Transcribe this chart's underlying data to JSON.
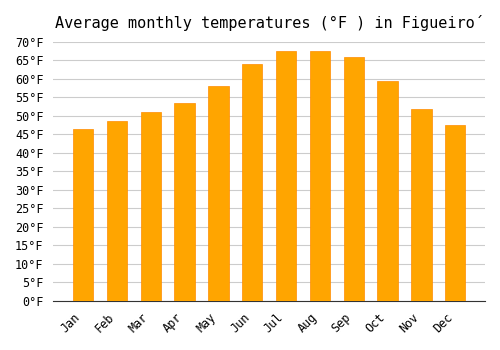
{
  "title": "Average monthly temperatures (°F ) in Figueiró",
  "months": [
    "Jan",
    "Feb",
    "Mar",
    "Apr",
    "May",
    "Jun",
    "Jul",
    "Aug",
    "Sep",
    "Oct",
    "Nov",
    "Dec"
  ],
  "values": [
    46.5,
    48.5,
    51.0,
    53.5,
    58.0,
    64.0,
    67.5,
    67.5,
    66.0,
    59.5,
    52.0,
    47.5
  ],
  "bar_color": "#FFA500",
  "bar_edge_color": "#FF8C00",
  "background_color": "#ffffff",
  "grid_color": "#cccccc",
  "ylim": [
    0,
    70
  ],
  "yticks": [
    0,
    5,
    10,
    15,
    20,
    25,
    30,
    35,
    40,
    45,
    50,
    55,
    60,
    65,
    70
  ],
  "title_fontsize": 11,
  "tick_fontsize": 8.5,
  "font_family": "monospace"
}
